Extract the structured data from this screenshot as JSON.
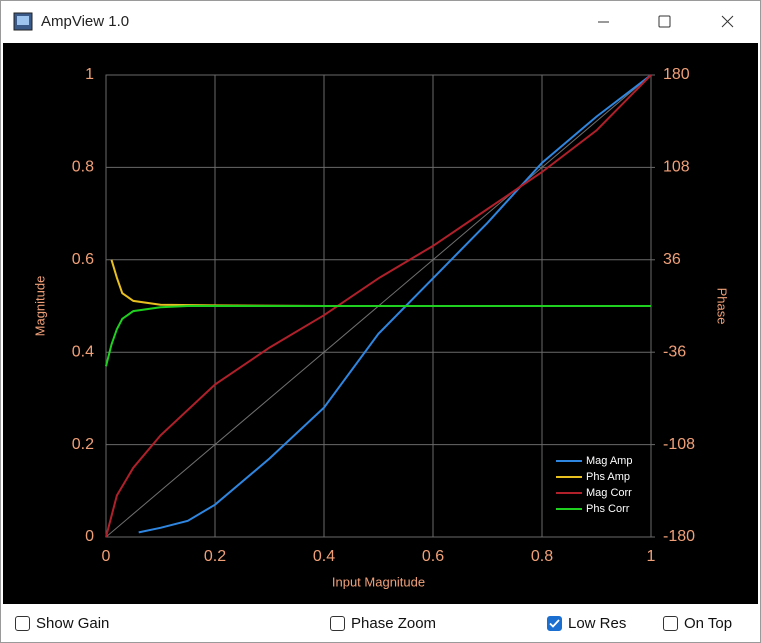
{
  "window": {
    "title": "AmpView 1.0"
  },
  "chart_data": {
    "type": "line",
    "x_label": "Input Magnitude",
    "y_label": "Magnitude",
    "y2_label": "Phase",
    "xlim": [
      0,
      1
    ],
    "xticks": [
      0,
      0.2,
      0.4,
      0.6,
      0.8,
      1
    ],
    "ylim": [
      0,
      1
    ],
    "yticks": [
      0,
      0.2,
      0.4,
      0.6,
      0.8,
      1
    ],
    "y2lim": [
      -180,
      180
    ],
    "y2ticks": [
      -180,
      -108,
      -36,
      36,
      108,
      180
    ],
    "grid": true,
    "legend": "lower right",
    "series": [
      {
        "name": "Mag Amp",
        "color": "#2f86e0",
        "x": [
          0.06,
          0.1,
          0.15,
          0.2,
          0.3,
          0.4,
          0.5,
          0.6,
          0.7,
          0.8,
          0.9,
          1
        ],
        "values": [
          0.01,
          0.02,
          0.035,
          0.07,
          0.17,
          0.28,
          0.44,
          0.56,
          0.68,
          0.81,
          0.91,
          1
        ]
      },
      {
        "name": "Phs Amp",
        "color": "#e8c020",
        "axis": "y2",
        "x": [
          0.01,
          0.02,
          0.03,
          0.05,
          0.1,
          0.2,
          0.4,
          0.6,
          0.8,
          1
        ],
        "values": [
          36,
          22,
          10,
          4,
          1,
          0.5,
          0,
          0,
          0,
          0
        ]
      },
      {
        "name": "Mag Corr",
        "color": "#b0202a",
        "x": [
          0,
          0.02,
          0.05,
          0.1,
          0.2,
          0.3,
          0.4,
          0.5,
          0.6,
          0.7,
          0.8,
          0.9,
          1
        ],
        "values": [
          0,
          0.09,
          0.15,
          0.22,
          0.33,
          0.41,
          0.48,
          0.56,
          0.63,
          0.71,
          0.79,
          0.88,
          1
        ]
      },
      {
        "name": "Phs Corr",
        "color": "#20d020",
        "axis": "y2",
        "x": [
          0,
          0.01,
          0.02,
          0.03,
          0.05,
          0.1,
          0.15,
          0.4,
          0.6,
          0.8,
          1
        ],
        "values": [
          -47,
          -30,
          -18,
          -10,
          -4,
          -1,
          0,
          0,
          0,
          0,
          0
        ]
      }
    ]
  },
  "controls": [
    {
      "label": "Show Gain",
      "checked": false
    },
    {
      "label": "Phase Zoom",
      "checked": false
    },
    {
      "label": "Low Res",
      "checked": true
    },
    {
      "label": "On Top",
      "checked": false
    }
  ]
}
